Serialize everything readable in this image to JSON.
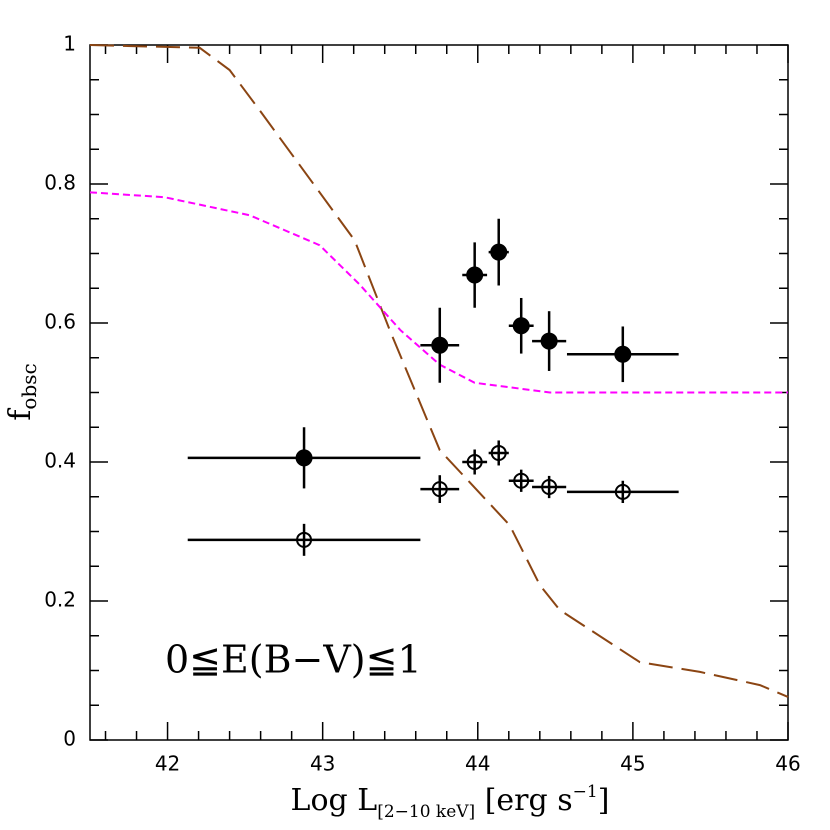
{
  "chart_data": {
    "type": "scatter",
    "xlabel": {
      "main": "Log L",
      "sub": "[2−10 keV]",
      "rest": " [erg s",
      "sup": "−1",
      "end": "]"
    },
    "ylabel": {
      "main": "f",
      "sub": "obsc"
    },
    "annotation": "0≦E(B−V)≦1",
    "xlim": [
      41.5,
      46
    ],
    "ylim": [
      0,
      1
    ],
    "xticks": [
      42,
      43,
      44,
      45,
      46
    ],
    "yticks": [
      0,
      0.2,
      0.4,
      0.6,
      0.8,
      1
    ],
    "xminorticks": [
      41.6,
      41.8,
      42.2,
      42.4,
      42.6,
      42.8,
      43.2,
      43.4,
      43.6,
      43.8,
      44.2,
      44.4,
      44.6,
      44.8,
      45.2,
      45.4,
      45.6,
      45.8
    ],
    "yminorticks": [
      0.05,
      0.1,
      0.15,
      0.25,
      0.3,
      0.35,
      0.45,
      0.5,
      0.55,
      0.65,
      0.7,
      0.75,
      0.85,
      0.9,
      0.95
    ],
    "series": [
      {
        "marker": "filled",
        "color": "#000000",
        "x": [
          42.88,
          43.755,
          43.98,
          44.135,
          44.28,
          44.46,
          44.935
        ],
        "values": [
          0.406,
          0.568,
          0.669,
          0.702,
          0.596,
          0.574,
          0.555
        ],
        "xerr": [
          0.75,
          0.125,
          0.08,
          0.065,
          0.08,
          0.11,
          0.36
        ],
        "yerr": [
          0.044,
          0.054,
          0.047,
          0.048,
          0.04,
          0.043,
          0.04
        ]
      },
      {
        "marker": "open",
        "color": "#000000",
        "x": [
          42.88,
          43.755,
          43.98,
          44.135,
          44.28,
          44.46,
          44.935
        ],
        "values": [
          0.288,
          0.361,
          0.4,
          0.413,
          0.373,
          0.364,
          0.357
        ],
        "xerr": [
          0.75,
          0.125,
          0.08,
          0.065,
          0.08,
          0.11,
          0.36
        ],
        "yerr": [
          0.023,
          0.02,
          0.018,
          0.018,
          0.016,
          0.016,
          0.016
        ]
      }
    ],
    "lines": [
      {
        "color": "#8b4513",
        "dash": "long",
        "x": [
          41.5,
          42.207,
          42.4,
          42.594,
          43.206,
          43.432,
          43.755,
          44.206,
          44.4,
          44.529,
          45.045,
          45.432,
          45.819,
          46.0
        ],
        "values": [
          1.0,
          0.996,
          0.964,
          0.906,
          0.719,
          0.59,
          0.417,
          0.309,
          0.223,
          0.187,
          0.112,
          0.098,
          0.079,
          0.062
        ]
      },
      {
        "color": "#ff00ff",
        "dash": "short",
        "x": [
          41.5,
          41.98,
          42.53,
          42.98,
          43.24,
          43.5,
          43.755,
          43.98,
          44.465,
          46.0
        ],
        "values": [
          0.788,
          0.781,
          0.755,
          0.712,
          0.655,
          0.59,
          0.54,
          0.514,
          0.5,
          0.5
        ]
      }
    ]
  }
}
